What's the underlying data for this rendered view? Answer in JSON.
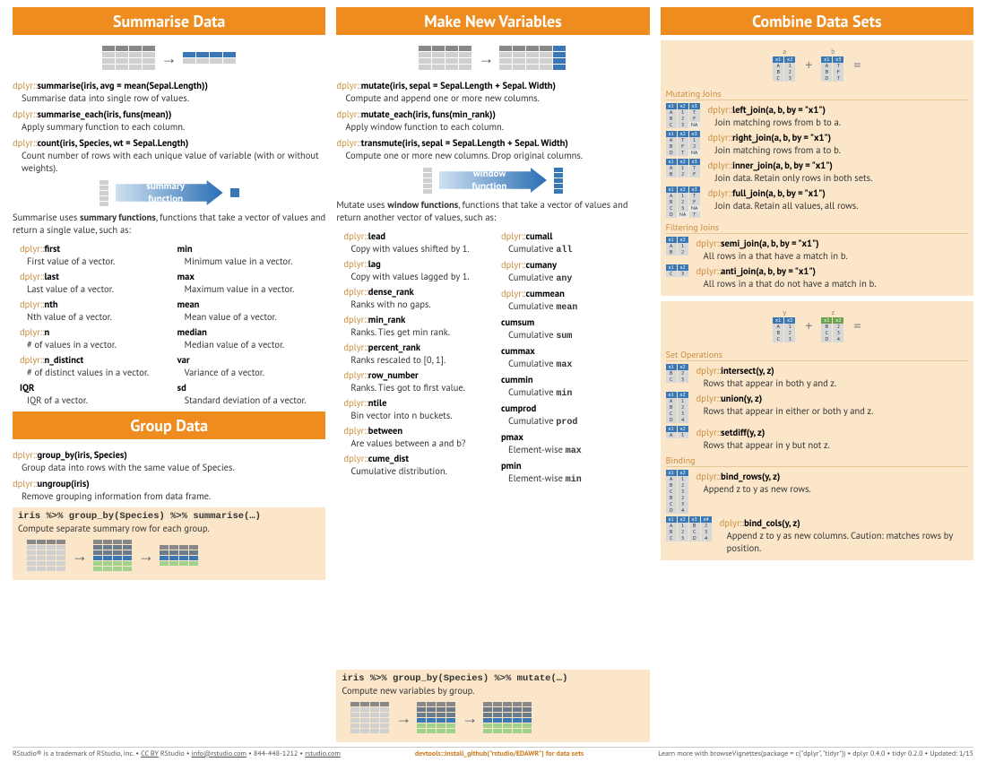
{
  "colors": {
    "accent": "#ef8c1f",
    "pkg": "#cc8b3a",
    "blue": "#3a78b5",
    "green": "#a2d18c",
    "peach_bg": "#fbe6ca"
  },
  "col1": {
    "title": "Summarise Data",
    "cmds": [
      {
        "pkg": "dplyr::",
        "fn": "summarise(iris, avg = mean(Sepal.Length))",
        "desc": "Summarise data into single row of values."
      },
      {
        "pkg": "dplyr::",
        "fn": "summarise_each(iris, funs(mean))",
        "desc": "Apply summary function to each column."
      },
      {
        "pkg": "dplyr::",
        "fn": "count(iris, Species, wt = Sepal.Length)",
        "desc": "Count number of rows with each unique value of variable (with or without weights)."
      }
    ],
    "arrow_label_top": "summary",
    "arrow_label_bot": "function",
    "explain": "Summarise uses <b>summary functions</b>, functions that take a vector of values and return a single value, such as:",
    "funcs_left": [
      {
        "pkg": "dplyr::",
        "fn": "first",
        "desc": "First value of a vector."
      },
      {
        "pkg": "dplyr::",
        "fn": "last",
        "desc": "Last value of a vector."
      },
      {
        "pkg": "dplyr::",
        "fn": "nth",
        "desc": "Nth value of a vector."
      },
      {
        "pkg": "dplyr::",
        "fn": "n",
        "desc": "# of values in a vector."
      },
      {
        "pkg": "dplyr::",
        "fn": "n_distinct",
        "desc": "# of distinct values in a vector."
      },
      {
        "pkg": "",
        "fn": "IQR",
        "desc": "IQR of a vector."
      }
    ],
    "funcs_right": [
      {
        "pkg": "",
        "fn": "min",
        "desc": "Minimum value in a vector."
      },
      {
        "pkg": "",
        "fn": "max",
        "desc": "Maximum value in a vector."
      },
      {
        "pkg": "",
        "fn": "mean",
        "desc": "Mean value of a vector."
      },
      {
        "pkg": "",
        "fn": "median",
        "desc": "Median value of a vector."
      },
      {
        "pkg": "",
        "fn": "var",
        "desc": "Variance of a vector."
      },
      {
        "pkg": "",
        "fn": "sd",
        "desc": "Standard deviation of a vector."
      }
    ],
    "group_title": "Group Data",
    "group_cmds": [
      {
        "pkg": "dplyr::",
        "fn": "group_by(iris, Species)",
        "desc": "Group data into rows with the same value of Species."
      },
      {
        "pkg": "dplyr::",
        "fn": "ungroup(iris)",
        "desc": "Remove grouping information from data frame."
      }
    ],
    "pipe1": {
      "code": "iris %>% group_by(Species) %>% summarise(…)",
      "desc": "Compute separate summary row for each group."
    }
  },
  "col2": {
    "title": "Make New Variables",
    "cmds": [
      {
        "pkg": "dplyr::",
        "fn": "mutate(iris, sepal = Sepal.Length + Sepal. Width)",
        "desc": "Compute and append one or more new columns."
      },
      {
        "pkg": "dplyr::",
        "fn": "mutate_each(iris, funs(min_rank))",
        "desc": "Apply window function to each column."
      },
      {
        "pkg": "dplyr::",
        "fn": "transmute(iris, sepal = Sepal.Length + Sepal. Width)",
        "desc": "Compute one or more new columns. Drop original columns."
      }
    ],
    "arrow_label_top": "window",
    "arrow_label_bot": "function",
    "explain": "Mutate uses <b>window functions</b>, functions that take a vector of values and return another vector of values, such as:",
    "funcs_left": [
      {
        "pkg": "dplyr::",
        "fn": "lead",
        "desc": "Copy with values shifted by 1."
      },
      {
        "pkg": "dplyr::",
        "fn": "lag",
        "desc": "Copy with values lagged by 1."
      },
      {
        "pkg": "dplyr::",
        "fn": "dense_rank",
        "desc": "Ranks with no gaps."
      },
      {
        "pkg": "dplyr::",
        "fn": "min_rank",
        "desc": "Ranks. Ties get min rank."
      },
      {
        "pkg": "dplyr::",
        "fn": "percent_rank",
        "desc": "Ranks rescaled to [0, 1]."
      },
      {
        "pkg": "dplyr::",
        "fn": "row_number",
        "desc": "Ranks. Ties got to first value."
      },
      {
        "pkg": "dplyr::",
        "fn": "ntile",
        "desc": "Bin vector into n buckets."
      },
      {
        "pkg": "dplyr::",
        "fn": "between",
        "desc": "Are values between a and b?"
      },
      {
        "pkg": "dplyr::",
        "fn": "cume_dist",
        "desc": "Cumulative distribution."
      }
    ],
    "funcs_right": [
      {
        "pkg": "dplyr::",
        "fn": "cumall",
        "desc": "Cumulative all"
      },
      {
        "pkg": "dplyr::",
        "fn": "cumany",
        "desc": "Cumulative any"
      },
      {
        "pkg": "dplyr::",
        "fn": "cummean",
        "desc": "Cumulative mean"
      },
      {
        "pkg": "",
        "fn": "cumsum",
        "desc": "Cumulative sum"
      },
      {
        "pkg": "",
        "fn": "cummax",
        "desc": "Cumulative max"
      },
      {
        "pkg": "",
        "fn": "cummin",
        "desc": "Cumulative min"
      },
      {
        "pkg": "",
        "fn": "cumprod",
        "desc": "Cumulative prod"
      },
      {
        "pkg": "",
        "fn": "pmax",
        "desc": "Element-wise max"
      },
      {
        "pkg": "",
        "fn": "pmin",
        "desc": "Element-wise min"
      }
    ],
    "pipe2": {
      "code": "iris %>% group_by(Species) %>% mutate(…)",
      "desc": "Compute new variables by group."
    }
  },
  "col3": {
    "title": "Combine Data Sets",
    "tbl_a": {
      "label": "a",
      "hdr": [
        "x1",
        "x2"
      ],
      "rows": [
        [
          "A",
          "1"
        ],
        [
          "B",
          "2"
        ],
        [
          "C",
          "3"
        ]
      ]
    },
    "tbl_b": {
      "label": "b",
      "hdr": [
        "x1",
        "x3"
      ],
      "rows": [
        [
          "A",
          "T"
        ],
        [
          "B",
          "F"
        ],
        [
          "D",
          "T"
        ]
      ]
    },
    "mut_title": "Mutating Joins",
    "mut": [
      {
        "pkg": "dplyr::",
        "fn": "left_join(a, b, by = \"x1\")",
        "desc": "Join matching rows from b to a."
      },
      {
        "pkg": "dplyr::",
        "fn": "right_join(a, b, by = \"x1\")",
        "desc": "Join matching rows from a to b."
      },
      {
        "pkg": "dplyr::",
        "fn": "inner_join(a, b, by = \"x1\")",
        "desc": "Join data. Retain only rows in both sets."
      },
      {
        "pkg": "dplyr::",
        "fn": "full_join(a, b, by = \"x1\")",
        "desc": "Join data. Retain all values, all rows."
      }
    ],
    "fil_title": "Filtering Joins",
    "fil": [
      {
        "pkg": "dplyr::",
        "fn": "semi_join(a, b, by = \"x1\")",
        "desc": "All rows in a that have a match in b."
      },
      {
        "pkg": "dplyr::",
        "fn": "anti_join(a, b, by = \"x1\")",
        "desc": "All rows in a that do not have a match in b."
      }
    ],
    "tbl_y": {
      "label": "y",
      "hdr": [
        "x1",
        "x2"
      ],
      "rows": [
        [
          "A",
          "1"
        ],
        [
          "B",
          "2"
        ],
        [
          "C",
          "3"
        ]
      ]
    },
    "tbl_z": {
      "label": "z",
      "hdr": [
        "x1",
        "x2"
      ],
      "rows": [
        [
          "B",
          "2"
        ],
        [
          "C",
          "3"
        ],
        [
          "D",
          "4"
        ]
      ]
    },
    "set_title": "Set Operations",
    "set": [
      {
        "pkg": "dplyr::",
        "fn": "intersect(y, z)",
        "desc": "Rows that appear in both y and z."
      },
      {
        "pkg": "dplyr::",
        "fn": "union(y, z)",
        "desc": "Rows that appear in either or both y and z."
      },
      {
        "pkg": "dplyr::",
        "fn": "setdiff(y, z)",
        "desc": "Rows that appear in y but not z."
      }
    ],
    "bind_title": "Binding",
    "bind": [
      {
        "pkg": "dplyr::",
        "fn": "bind_rows(y, z)",
        "desc": "Append z to y as new rows."
      },
      {
        "pkg": "dplyr::",
        "fn": "bind_cols(y, z)",
        "desc": "Append z to y as new columns. Caution: matches rows by position."
      }
    ]
  },
  "footer": {
    "left": "RStudio® is a trademark of RStudio, Inc. • CC BY RStudio • info@rstudio.com • 844-448-1212 • rstudio.com",
    "mid": "devtools::install_github(\"rstudio/EDAWR\") for data sets",
    "right": "Learn more with browseVignettes(package = c(\"dplyr\", \"tidyr\")) • dplyr 0.4.0 • tidyr 0.2.0 • Updated: 1/15"
  }
}
